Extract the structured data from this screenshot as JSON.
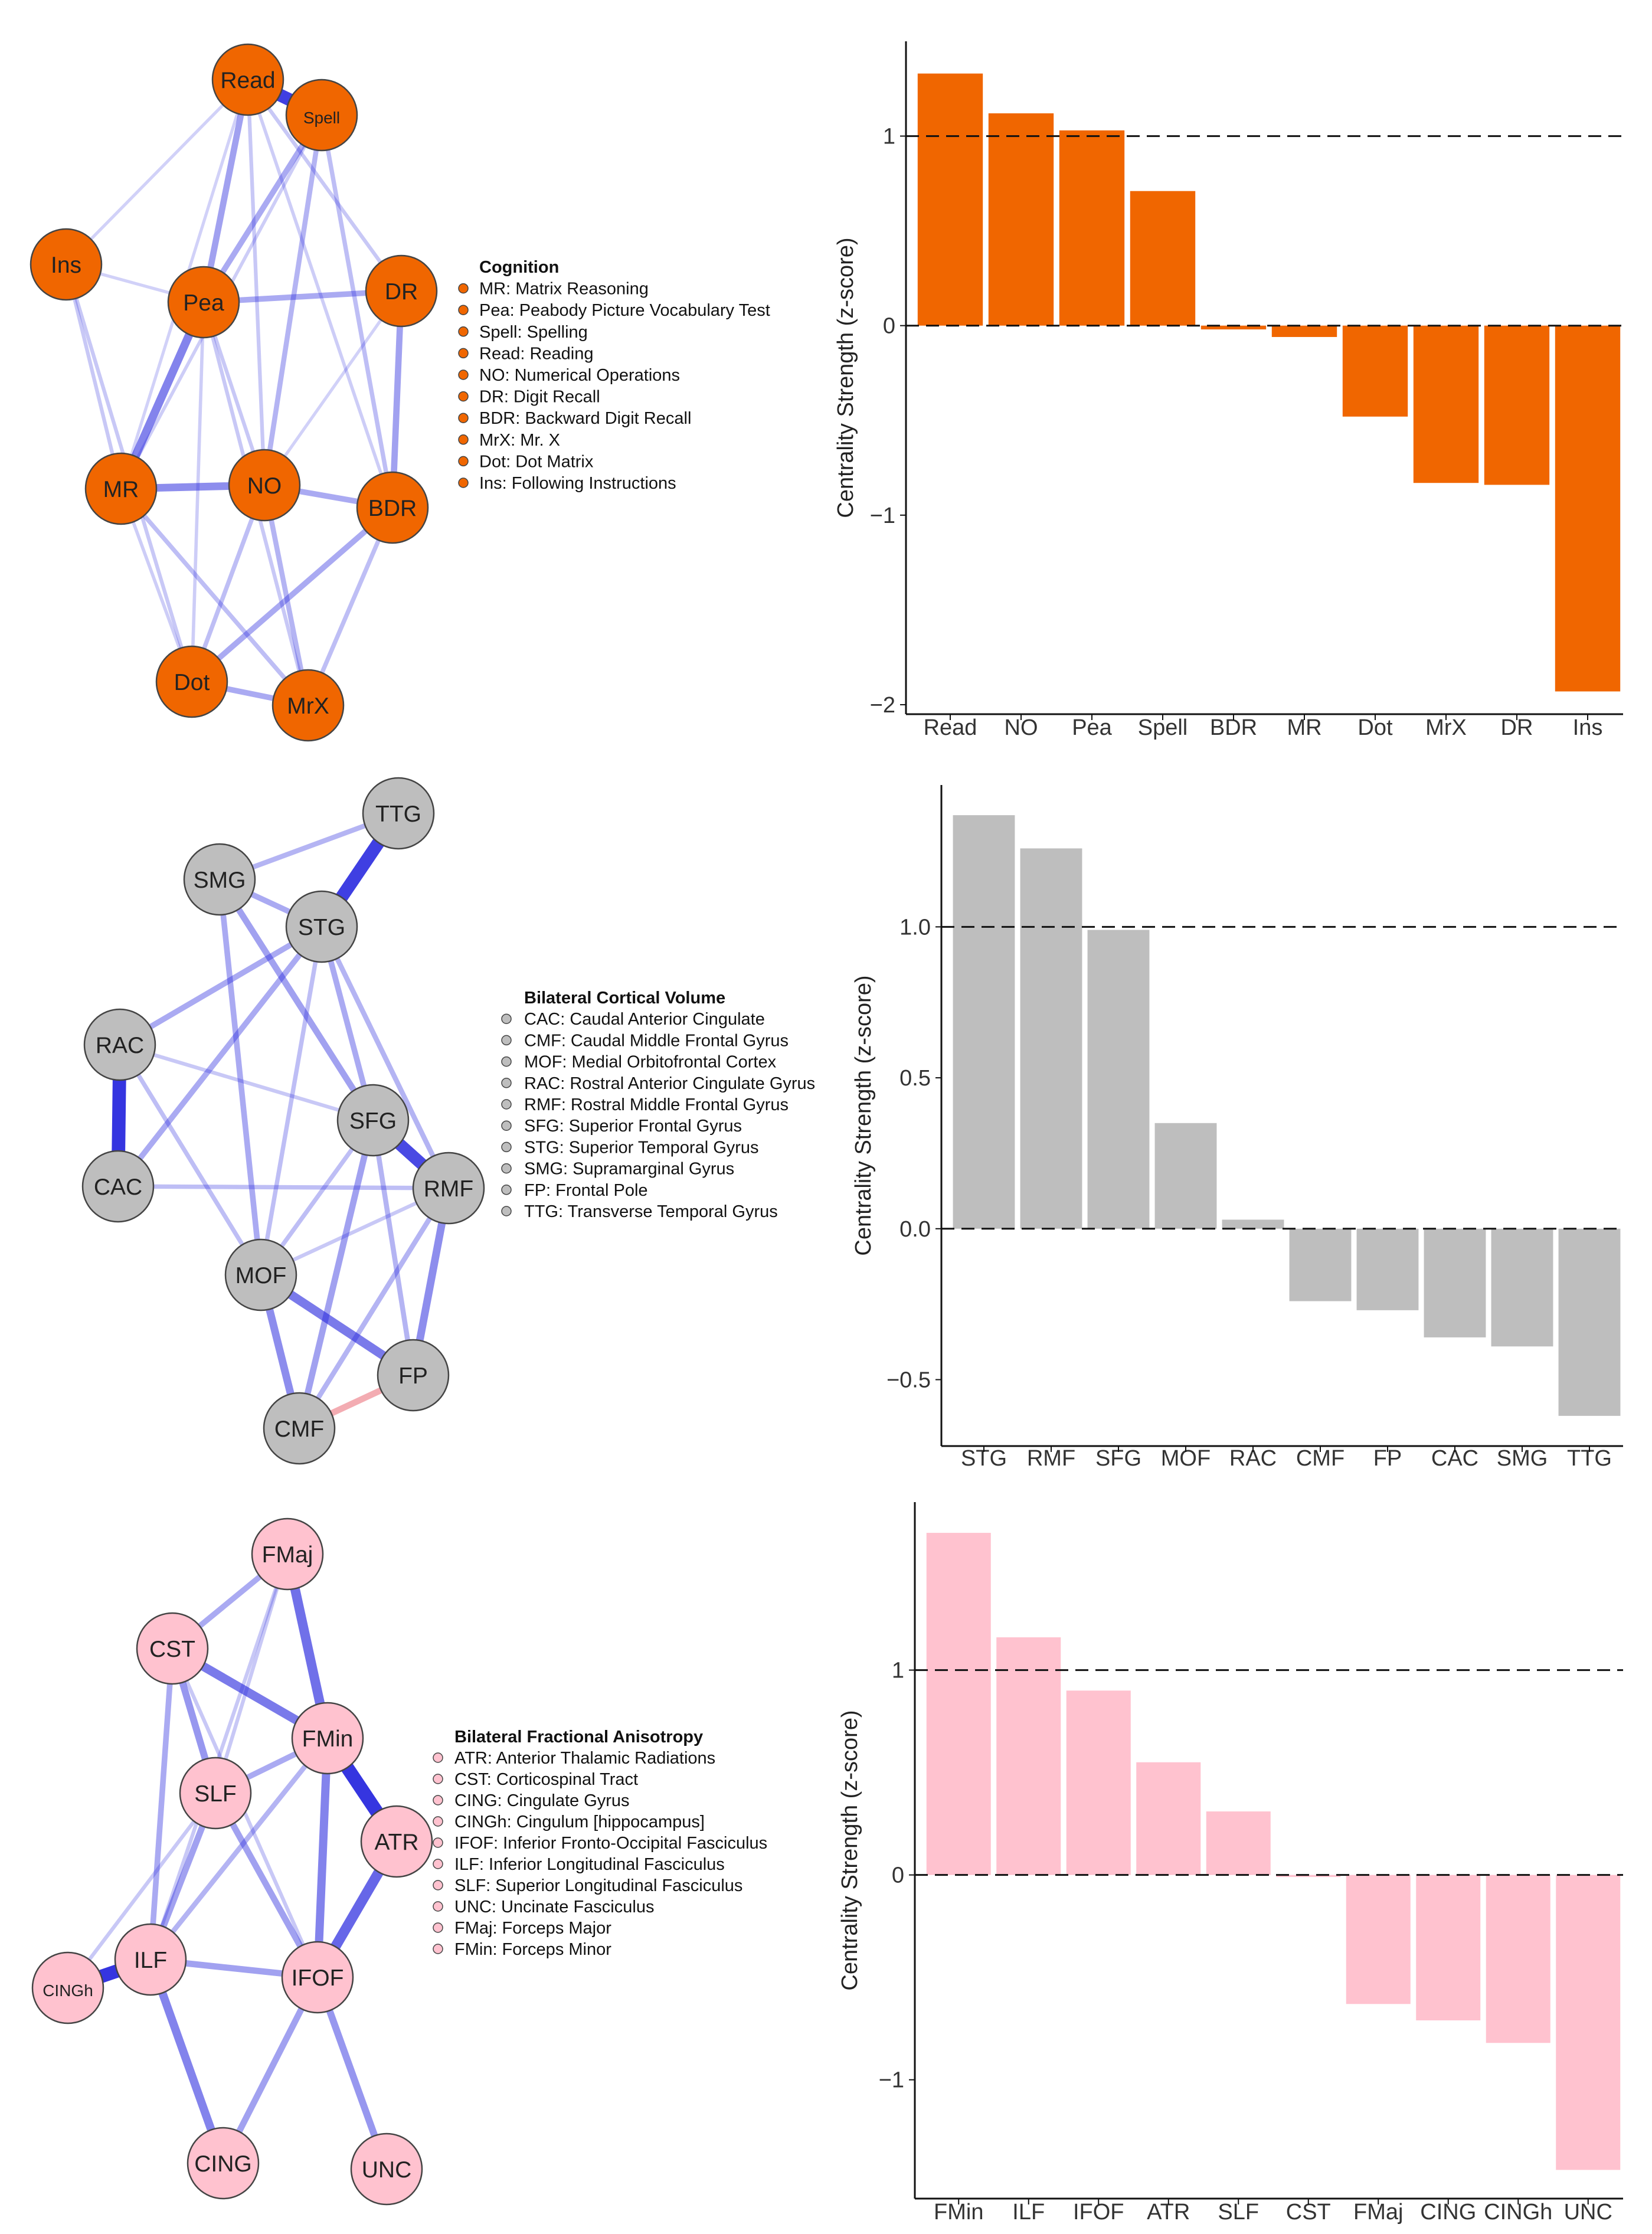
{
  "colors": {
    "edge_positive": "#2222dd",
    "edge_negative": "#f2a8ae",
    "node_stroke": "#444444",
    "axis": "#111111"
  },
  "networks": [
    {
      "fill": "#f06600",
      "legend": {
        "title": "Cognition",
        "items": [
          "MR: Matrix Reasoning",
          "Pea: Peabody Picture Vocabulary Test",
          "Spell: Spelling",
          "Read: Reading",
          "NO: Numerical Operations",
          "DR: Digit Recall",
          "BDR: Backward Digit Recall",
          "MrX: Mr. X",
          "Dot: Dot Matrix",
          "Ins: Following Instructions"
        ]
      },
      "nodes": [
        {
          "id": "Read",
          "label": "Read"
        },
        {
          "id": "Spell",
          "label": "Spell"
        },
        {
          "id": "Ins",
          "label": "Ins"
        },
        {
          "id": "Pea",
          "label": "Pea"
        },
        {
          "id": "DR",
          "label": "DR"
        },
        {
          "id": "MR",
          "label": "MR"
        },
        {
          "id": "NO",
          "label": "NO"
        },
        {
          "id": "BDR",
          "label": "BDR"
        },
        {
          "id": "Dot",
          "label": "Dot"
        },
        {
          "id": "MrX",
          "label": "MrX"
        }
      ],
      "edges": [
        {
          "from": "Read",
          "to": "Spell",
          "weight": 0.85
        },
        {
          "from": "Read",
          "to": "Pea",
          "weight": 0.35
        },
        {
          "from": "Read",
          "to": "DR",
          "weight": 0.15
        },
        {
          "from": "Read",
          "to": "Ins",
          "weight": 0.1
        },
        {
          "from": "Read",
          "to": "NO",
          "weight": 0.15
        },
        {
          "from": "Read",
          "to": "MR",
          "weight": 0.1
        },
        {
          "from": "Read",
          "to": "BDR",
          "weight": 0.12
        },
        {
          "from": "Spell",
          "to": "Pea",
          "weight": 0.3
        },
        {
          "from": "Spell",
          "to": "NO",
          "weight": 0.25
        },
        {
          "from": "Spell",
          "to": "BDR",
          "weight": 0.2
        },
        {
          "from": "Spell",
          "to": "MR",
          "weight": 0.12
        },
        {
          "from": "Ins",
          "to": "Pea",
          "weight": 0.1
        },
        {
          "from": "Ins",
          "to": "MR",
          "weight": 0.15
        },
        {
          "from": "Ins",
          "to": "Dot",
          "weight": 0.15
        },
        {
          "from": "Pea",
          "to": "DR",
          "weight": 0.3
        },
        {
          "from": "Pea",
          "to": "MR",
          "weight": 0.5
        },
        {
          "from": "Pea",
          "to": "NO",
          "weight": 0.15
        },
        {
          "from": "Pea",
          "to": "Dot",
          "weight": 0.12
        },
        {
          "from": "Pea",
          "to": "MrX",
          "weight": 0.15
        },
        {
          "from": "DR",
          "to": "BDR",
          "weight": 0.35
        },
        {
          "from": "DR",
          "to": "NO",
          "weight": 0.1
        },
        {
          "from": "MR",
          "to": "NO",
          "weight": 0.45
        },
        {
          "from": "MR",
          "to": "Dot",
          "weight": 0.12
        },
        {
          "from": "MR",
          "to": "MrX",
          "weight": 0.2
        },
        {
          "from": "NO",
          "to": "BDR",
          "weight": 0.3
        },
        {
          "from": "NO",
          "to": "Dot",
          "weight": 0.2
        },
        {
          "from": "NO",
          "to": "MrX",
          "weight": 0.25
        },
        {
          "from": "BDR",
          "to": "Dot",
          "weight": 0.3
        },
        {
          "from": "BDR",
          "to": "MrX",
          "weight": 0.2
        },
        {
          "from": "Dot",
          "to": "MrX",
          "weight": 0.3
        }
      ]
    },
    {
      "fill": "#bebebe",
      "legend": {
        "title": "Bilateral Cortical Volume",
        "items": [
          "CAC: Caudal Anterior Cingulate",
          "CMF: Caudal Middle Frontal Gyrus",
          "MOF: Medial Orbitofrontal Cortex",
          "RAC: Rostral Anterior Cingulate Gyrus",
          "RMF: Rostral Middle Frontal Gyrus",
          "SFG: Superior Frontal Gyrus",
          "STG: Superior Temporal Gyrus",
          "SMG: Supramarginal Gyrus",
          "FP: Frontal Pole",
          "TTG: Transverse Temporal Gyrus"
        ]
      },
      "nodes": [
        {
          "id": "TTG",
          "label": "TTG"
        },
        {
          "id": "SMG",
          "label": "SMG"
        },
        {
          "id": "STG",
          "label": "STG"
        },
        {
          "id": "RAC",
          "label": "RAC"
        },
        {
          "id": "SFG",
          "label": "SFG"
        },
        {
          "id": "CAC",
          "label": "CAC"
        },
        {
          "id": "RMF",
          "label": "RMF"
        },
        {
          "id": "MOF",
          "label": "MOF"
        },
        {
          "id": "FP",
          "label": "FP"
        },
        {
          "id": "CMF",
          "label": "CMF"
        }
      ],
      "edges": [
        {
          "from": "TTG",
          "to": "STG",
          "weight": 0.85
        },
        {
          "from": "TTG",
          "to": "SMG",
          "weight": 0.25
        },
        {
          "from": "SMG",
          "to": "STG",
          "weight": 0.3
        },
        {
          "from": "SMG",
          "to": "SFG",
          "weight": 0.35
        },
        {
          "from": "SMG",
          "to": "MOF",
          "weight": 0.3
        },
        {
          "from": "STG",
          "to": "RAC",
          "weight": 0.3
        },
        {
          "from": "STG",
          "to": "CAC",
          "weight": 0.3
        },
        {
          "from": "STG",
          "to": "SFG",
          "weight": 0.3
        },
        {
          "from": "STG",
          "to": "RMF",
          "weight": 0.25
        },
        {
          "from": "STG",
          "to": "MOF",
          "weight": 0.2
        },
        {
          "from": "RAC",
          "to": "CAC",
          "weight": 0.9
        },
        {
          "from": "RAC",
          "to": "SFG",
          "weight": 0.15
        },
        {
          "from": "RAC",
          "to": "MOF",
          "weight": 0.2
        },
        {
          "from": "CAC",
          "to": "RMF",
          "weight": 0.2
        },
        {
          "from": "SFG",
          "to": "RMF",
          "weight": 0.8
        },
        {
          "from": "SFG",
          "to": "CMF",
          "weight": 0.35
        },
        {
          "from": "SFG",
          "to": "MOF",
          "weight": 0.2
        },
        {
          "from": "SFG",
          "to": "FP",
          "weight": 0.25
        },
        {
          "from": "RMF",
          "to": "FP",
          "weight": 0.45
        },
        {
          "from": "RMF",
          "to": "CMF",
          "weight": 0.25
        },
        {
          "from": "RMF",
          "to": "MOF",
          "weight": 0.15
        },
        {
          "from": "MOF",
          "to": "FP",
          "weight": 0.55
        },
        {
          "from": "MOF",
          "to": "CMF",
          "weight": 0.45
        },
        {
          "from": "FP",
          "to": "CMF",
          "weight": 0.35,
          "negative": true
        }
      ]
    },
    {
      "fill": "#ffc2cf",
      "legend": {
        "title": "Bilateral Fractional Anisotropy",
        "items": [
          "ATR: Anterior Thalamic Radiations",
          "CST: Corticospinal Tract",
          "CING: Cingulate Gyrus",
          "CINGh: Cingulum [hippocampus]",
          "IFOF: Inferior Fronto-Occipital Fasciculus",
          "ILF: Inferior Longitudinal Fasciculus",
          "SLF: Superior Longitudinal Fasciculus",
          "UNC: Uncinate Fasciculus",
          "FMaj: Forceps Major",
          "FMin: Forceps Minor"
        ]
      },
      "nodes": [
        {
          "id": "FMaj",
          "label": "FMaj"
        },
        {
          "id": "CST",
          "label": "CST"
        },
        {
          "id": "FMin",
          "label": "FMin"
        },
        {
          "id": "SLF",
          "label": "SLF"
        },
        {
          "id": "ATR",
          "label": "ATR"
        },
        {
          "id": "ILF",
          "label": "ILF"
        },
        {
          "id": "IFOF",
          "label": "IFOF"
        },
        {
          "id": "CINGh",
          "label": "CINGh"
        },
        {
          "id": "CING",
          "label": "CING"
        },
        {
          "id": "UNC",
          "label": "UNC"
        }
      ],
      "edges": [
        {
          "from": "FMaj",
          "to": "FMin",
          "weight": 0.6
        },
        {
          "from": "FMaj",
          "to": "CST",
          "weight": 0.3
        },
        {
          "from": "FMaj",
          "to": "SLF",
          "weight": 0.15
        },
        {
          "from": "FMaj",
          "to": "ILF",
          "weight": 0.15
        },
        {
          "from": "CST",
          "to": "FMin",
          "weight": 0.55
        },
        {
          "from": "CST",
          "to": "SLF",
          "weight": 0.4
        },
        {
          "from": "CST",
          "to": "ILF",
          "weight": 0.3
        },
        {
          "from": "CST",
          "to": "IFOF",
          "weight": 0.15
        },
        {
          "from": "FMin",
          "to": "ATR",
          "weight": 0.9
        },
        {
          "from": "FMin",
          "to": "SLF",
          "weight": 0.3
        },
        {
          "from": "FMin",
          "to": "IFOF",
          "weight": 0.5
        },
        {
          "from": "FMin",
          "to": "ILF",
          "weight": 0.25
        },
        {
          "from": "SLF",
          "to": "ILF",
          "weight": 0.35
        },
        {
          "from": "SLF",
          "to": "IFOF",
          "weight": 0.35
        },
        {
          "from": "SLF",
          "to": "CINGh",
          "weight": 0.15
        },
        {
          "from": "ATR",
          "to": "IFOF",
          "weight": 0.65
        },
        {
          "from": "ILF",
          "to": "CINGh",
          "weight": 0.9
        },
        {
          "from": "ILF",
          "to": "IFOF",
          "weight": 0.35
        },
        {
          "from": "ILF",
          "to": "CING",
          "weight": 0.5
        },
        {
          "from": "IFOF",
          "to": "CING",
          "weight": 0.35
        },
        {
          "from": "IFOF",
          "to": "UNC",
          "weight": 0.4
        }
      ]
    }
  ],
  "chart_data": [
    {
      "type": "bar",
      "color": "#f06600",
      "categories": [
        "Read",
        "NO",
        "Pea",
        "Spell",
        "BDR",
        "MR",
        "Dot",
        "MrX",
        "DR",
        "Ins"
      ],
      "values": [
        1.33,
        1.12,
        1.03,
        0.71,
        -0.02,
        -0.06,
        -0.48,
        -0.83,
        -0.84,
        -1.93
      ],
      "title": "",
      "xlabel": "",
      "ylabel": "Centrality Strength (z-score)",
      "yticks": [
        -2,
        -1,
        0,
        1
      ],
      "ytick_labels": [
        "−2",
        "−1",
        "0",
        "1"
      ],
      "ylim": [
        -2.05,
        1.5
      ],
      "reference_lines": [
        0,
        1
      ]
    },
    {
      "type": "bar",
      "color": "#bebebe",
      "categories": [
        "STG",
        "RMF",
        "SFG",
        "MOF",
        "RAC",
        "CMF",
        "FP",
        "CAC",
        "SMG",
        "TTG"
      ],
      "values": [
        1.37,
        1.26,
        0.99,
        0.35,
        0.03,
        -0.24,
        -0.27,
        -0.36,
        -0.39,
        -0.62
      ],
      "title": "",
      "xlabel": "",
      "ylabel": "Centrality Strength (z-score)",
      "yticks": [
        -0.5,
        0.0,
        0.5,
        1.0
      ],
      "ytick_labels": [
        "−0.5",
        "0.0",
        "0.5",
        "1.0"
      ],
      "ylim": [
        -0.72,
        1.47
      ],
      "reference_lines": [
        0,
        1
      ]
    },
    {
      "type": "bar",
      "color": "#ffc2cf",
      "categories": [
        "FMin",
        "ILF",
        "IFOF",
        "ATR",
        "SLF",
        "CST",
        "FMaj",
        "CING",
        "CINGh",
        "UNC"
      ],
      "values": [
        1.67,
        1.16,
        0.9,
        0.55,
        0.31,
        -0.01,
        -0.63,
        -0.71,
        -0.82,
        -1.44
      ],
      "title": "",
      "xlabel": "",
      "ylabel": "Centrality Strength (z-score)",
      "yticks": [
        -1,
        0,
        1
      ],
      "ytick_labels": [
        "−1",
        "0",
        "1"
      ],
      "ylim": [
        -1.58,
        1.82
      ],
      "reference_lines": [
        0,
        1
      ]
    }
  ]
}
